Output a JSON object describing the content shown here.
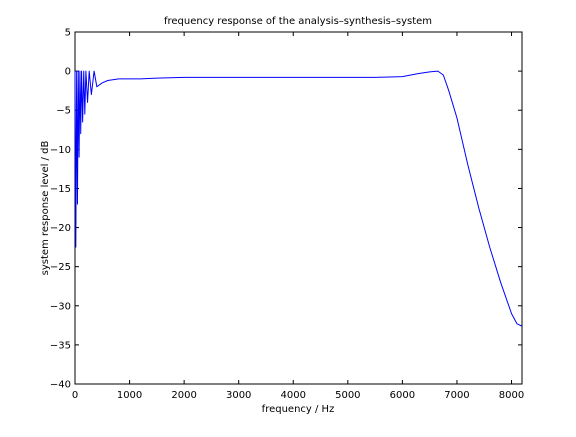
{
  "chart_data": {
    "type": "line",
    "title": "frequency response of the analysis–synthesis–system",
    "xlabel": "frequency / Hz",
    "ylabel": "system response level / dB",
    "xlim": [
      0,
      8192
    ],
    "ylim": [
      -40,
      5
    ],
    "xticks": [
      0,
      1000,
      2000,
      3000,
      4000,
      5000,
      6000,
      7000,
      8000
    ],
    "yticks": [
      5,
      0,
      -5,
      -10,
      -15,
      -20,
      -25,
      -30,
      -35,
      -40
    ],
    "xtick_labels": [
      "0",
      "1000",
      "2000",
      "3000",
      "4000",
      "5000",
      "6000",
      "7000",
      "8000"
    ],
    "ytick_labels": [
      "5",
      "0",
      "−5",
      "−10",
      "−15",
      "−20",
      "−25",
      "−30",
      "−35",
      "−40"
    ],
    "grid": false,
    "series": [
      {
        "color": "#0000ff",
        "x": [
          0,
          15,
          30,
          45,
          60,
          75,
          90,
          105,
          120,
          140,
          160,
          180,
          200,
          230,
          260,
          300,
          350,
          400,
          500,
          600,
          800,
          1000,
          1200,
          1500,
          2000,
          2500,
          3000,
          3500,
          4000,
          4500,
          5000,
          5500,
          6000,
          6300,
          6500,
          6650,
          6750,
          6850,
          7000,
          7200,
          7400,
          7600,
          7800,
          8000,
          8100,
          8192
        ],
        "y": [
          0,
          -22.5,
          0,
          -17,
          0,
          -11,
          0,
          -8,
          0,
          -6.5,
          0,
          -5.5,
          0,
          -4,
          0,
          -3,
          0,
          -2,
          -1.5,
          -1.2,
          -1.0,
          -1.0,
          -1.0,
          -0.9,
          -0.8,
          -0.8,
          -0.8,
          -0.8,
          -0.8,
          -0.8,
          -0.8,
          -0.8,
          -0.7,
          -0.3,
          -0.1,
          0,
          -0.5,
          -2.5,
          -6,
          -12,
          -17.5,
          -22.5,
          -27,
          -31,
          -32.3,
          -32.6
        ]
      }
    ]
  }
}
